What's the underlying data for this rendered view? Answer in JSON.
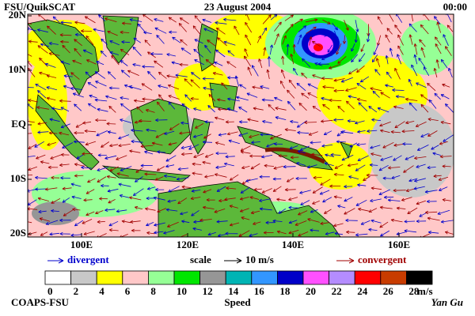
{
  "header": {
    "left": "FSU/QuikSCAT",
    "center": "23 August 2004",
    "right": "00:00"
  },
  "map": {
    "lat_labels": [
      "20N",
      "10N",
      "EQ",
      "10S",
      "20S"
    ],
    "lon_labels": [
      "100E",
      "120E",
      "140E",
      "160E"
    ]
  },
  "legend": {
    "divergent": "divergent",
    "divergent_color": "#0000cc",
    "scale": "scale",
    "scale_value": "10 m/s",
    "convergent": "convergent",
    "convergent_color": "#a00000"
  },
  "colorbar": {
    "ticks": [
      0,
      2,
      4,
      6,
      8,
      10,
      12,
      14,
      16,
      18,
      20,
      22,
      24,
      26,
      28
    ],
    "unit": "m/s",
    "label": "Speed",
    "colors": [
      "#ffffff",
      "#c8c8c8",
      "#ffff00",
      "#ffc8c8",
      "#96ff96",
      "#00e600",
      "#969696",
      "#00b4b4",
      "#3296ff",
      "#0000c8",
      "#ff50ff",
      "#b48cff",
      "#ff0000",
      "#c83c00",
      "#000000"
    ]
  },
  "footer": {
    "left": "COAPS-FSU",
    "right": "Yan Gu"
  }
}
